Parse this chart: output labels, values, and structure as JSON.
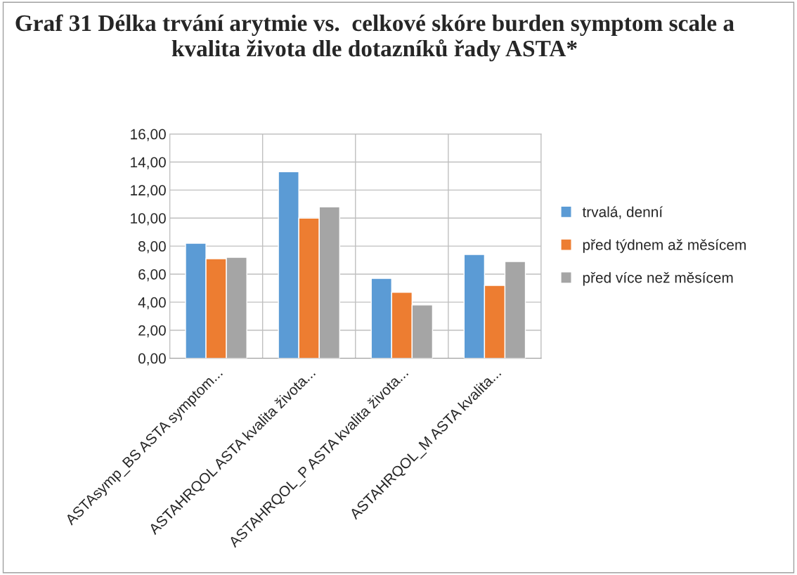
{
  "chart_data": {
    "type": "bar",
    "title": "Graf 31 Délka trvání arytmie vs.  celkové skóre burden symptom scale a kvalita života dle dotazníků řady ASTA*",
    "categories": [
      "ASTAsymp_BS ASTA symptom...",
      "ASTAHRQOL ASTA kvalita života...",
      "ASTAHRQOL_P ASTA kvalita života...",
      "ASTAHRQOL_M ASTA kvalita..."
    ],
    "series": [
      {
        "name": "trvalá, denní",
        "color": "#5b9bd5",
        "values": [
          8.2,
          13.3,
          5.7,
          7.4
        ]
      },
      {
        "name": "před týdnem až měsícem",
        "color": "#ed7d31",
        "values": [
          7.1,
          10.0,
          4.7,
          5.2
        ]
      },
      {
        "name": "před více než měsícem",
        "color": "#a5a5a5",
        "values": [
          7.2,
          10.8,
          3.8,
          6.9
        ]
      }
    ],
    "ylim": [
      0,
      16
    ],
    "yticks": [
      {
        "value": 0,
        "label": "0,00"
      },
      {
        "value": 2,
        "label": "2,00"
      },
      {
        "value": 4,
        "label": "4,00"
      },
      {
        "value": 6,
        "label": "6,00"
      },
      {
        "value": 8,
        "label": "8,00"
      },
      {
        "value": 10,
        "label": "10,00"
      },
      {
        "value": 12,
        "label": "12,00"
      },
      {
        "value": 14,
        "label": "14,00"
      },
      {
        "value": 16,
        "label": "16,00"
      }
    ],
    "grid": true,
    "legend": "right"
  }
}
